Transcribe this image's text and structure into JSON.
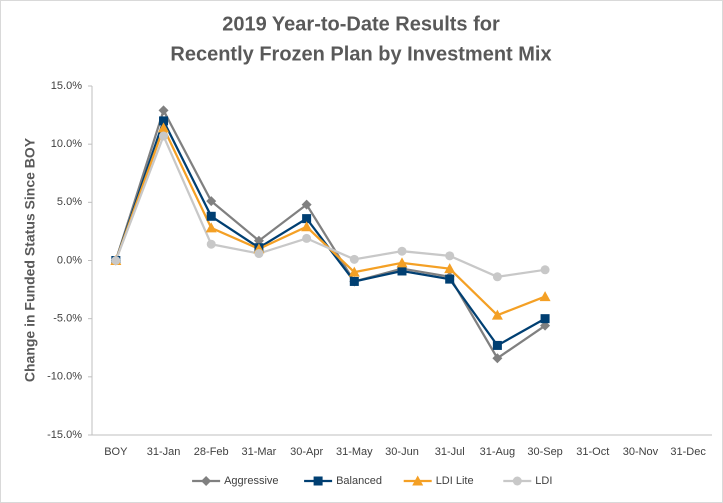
{
  "chart_data": {
    "type": "line",
    "title": [
      "2019 Year-to-Date Results for",
      "Recently Frozen Plan by Investment Mix"
    ],
    "y_label": "Change in Funded Status Since BOY",
    "categories": [
      "BOY",
      "31-Jan",
      "28-Feb",
      "31-Mar",
      "30-Apr",
      "31-May",
      "30-Jun",
      "31-Jul",
      "31-Aug",
      "30-Sep",
      "31-Oct",
      "30-Nov",
      "31-Dec"
    ],
    "series": [
      {
        "name": "Aggressive",
        "color": "#808080",
        "marker": "diamond",
        "values": [
          0,
          12.9,
          5.1,
          1.7,
          4.8,
          -1.8,
          -0.7,
          -1.4,
          -8.4,
          -5.6,
          null,
          null,
          null
        ]
      },
      {
        "name": "Balanced",
        "color": "#003f72",
        "marker": "square",
        "values": [
          0,
          12.0,
          3.8,
          1.1,
          3.6,
          -1.8,
          -0.9,
          -1.6,
          -7.3,
          -5.0,
          null,
          null,
          null
        ]
      },
      {
        "name": "LDI Lite",
        "color": "#f4a025",
        "marker": "triangle",
        "values": [
          0,
          11.4,
          2.8,
          1.0,
          2.9,
          -1.0,
          -0.2,
          -0.7,
          -4.7,
          -3.1,
          null,
          null,
          null
        ]
      },
      {
        "name": "LDI",
        "color": "#c8c8c8",
        "marker": "circle",
        "values": [
          0,
          10.7,
          1.4,
          0.6,
          1.9,
          0.1,
          0.8,
          0.4,
          -1.4,
          -0.8,
          null,
          null,
          null
        ]
      }
    ],
    "ylim": [
      -15,
      15
    ],
    "yticks": [
      {
        "value": -15,
        "label": "-15.0%"
      },
      {
        "value": -10,
        "label": "-10.0%"
      },
      {
        "value": -5,
        "label": "-5.0%"
      },
      {
        "value": 0,
        "label": "0.0%"
      },
      {
        "value": 5,
        "label": "5.0%"
      },
      {
        "value": 10,
        "label": "10.0%"
      },
      {
        "value": 15,
        "label": "15.0%"
      }
    ],
    "grid": false,
    "legend": "bottom"
  }
}
